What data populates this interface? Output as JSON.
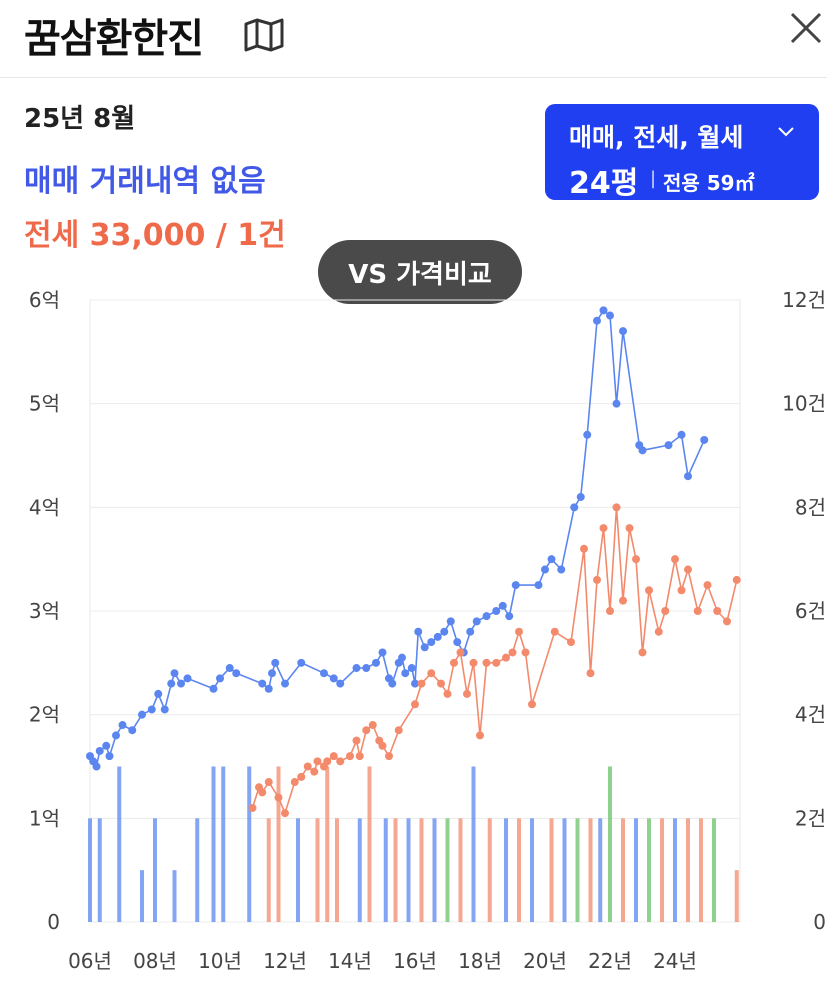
{
  "header": {
    "title": "꿈삼환한진",
    "map_icon": "map-icon",
    "close_icon": "close-icon"
  },
  "info": {
    "month": "25년 8월",
    "sale_text": "매매 거래내역 없음",
    "rent_text": "전세 33,000 / 1건"
  },
  "filter": {
    "types": "매매, 전세, 월세",
    "size": "24평",
    "area": "전용 59㎡"
  },
  "vs_button": "VS 가격비교",
  "colors": {
    "sale": "#5b86f0",
    "rent": "#f38a6c",
    "monthly": "#6cc16b",
    "accent": "#1f3ff0"
  },
  "chart_data": {
    "type": "line",
    "x_range": [
      2006,
      2026
    ],
    "xticks": [
      "06년",
      "08년",
      "10년",
      "12년",
      "14년",
      "16년",
      "18년",
      "20년",
      "22년",
      "24년"
    ],
    "y_left": {
      "ylim": [
        0,
        6
      ],
      "ticks": [
        "0",
        "1억",
        "2억",
        "3억",
        "4억",
        "5억",
        "6억"
      ]
    },
    "y_right": {
      "ylim": [
        0,
        12
      ],
      "ticks": [
        "0",
        "2건",
        "4건",
        "6건",
        "8건",
        "10건",
        "12건"
      ]
    },
    "series": [
      {
        "color": "#5b86f0",
        "points": [
          [
            2006.0,
            1.6
          ],
          [
            2006.1,
            1.55
          ],
          [
            2006.2,
            1.5
          ],
          [
            2006.3,
            1.65
          ],
          [
            2006.5,
            1.7
          ],
          [
            2006.6,
            1.6
          ],
          [
            2006.8,
            1.8
          ],
          [
            2007.0,
            1.9
          ],
          [
            2007.3,
            1.85
          ],
          [
            2007.6,
            2.0
          ],
          [
            2007.9,
            2.05
          ],
          [
            2008.1,
            2.2
          ],
          [
            2008.3,
            2.05
          ],
          [
            2008.5,
            2.3
          ],
          [
            2008.6,
            2.4
          ],
          [
            2008.8,
            2.3
          ],
          [
            2009.0,
            2.35
          ],
          [
            2009.8,
            2.25
          ],
          [
            2010.0,
            2.35
          ],
          [
            2010.3,
            2.45
          ],
          [
            2010.5,
            2.4
          ],
          [
            2011.3,
            2.3
          ],
          [
            2011.5,
            2.25
          ],
          [
            2011.6,
            2.4
          ],
          [
            2011.7,
            2.5
          ],
          [
            2012.0,
            2.3
          ],
          [
            2012.5,
            2.5
          ],
          [
            2013.2,
            2.4
          ],
          [
            2013.5,
            2.35
          ],
          [
            2013.7,
            2.3
          ],
          [
            2014.2,
            2.45
          ],
          [
            2014.5,
            2.45
          ],
          [
            2014.8,
            2.5
          ],
          [
            2015.0,
            2.6
          ],
          [
            2015.2,
            2.35
          ],
          [
            2015.3,
            2.3
          ],
          [
            2015.5,
            2.5
          ],
          [
            2015.6,
            2.55
          ],
          [
            2015.7,
            2.4
          ],
          [
            2015.9,
            2.45
          ],
          [
            2016.0,
            2.3
          ],
          [
            2016.1,
            2.8
          ],
          [
            2016.3,
            2.65
          ],
          [
            2016.5,
            2.7
          ],
          [
            2016.7,
            2.75
          ],
          [
            2016.9,
            2.8
          ],
          [
            2017.1,
            2.9
          ],
          [
            2017.3,
            2.7
          ],
          [
            2017.5,
            2.6
          ],
          [
            2017.7,
            2.8
          ],
          [
            2017.9,
            2.9
          ],
          [
            2018.2,
            2.95
          ],
          [
            2018.5,
            3.0
          ],
          [
            2018.7,
            3.05
          ],
          [
            2018.9,
            2.95
          ],
          [
            2019.1,
            3.25
          ],
          [
            2019.8,
            3.25
          ],
          [
            2020.0,
            3.4
          ],
          [
            2020.2,
            3.5
          ],
          [
            2020.5,
            3.4
          ],
          [
            2020.9,
            4.0
          ],
          [
            2021.1,
            4.1
          ],
          [
            2021.3,
            4.7
          ],
          [
            2021.6,
            5.8
          ],
          [
            2021.8,
            5.9
          ],
          [
            2022.0,
            5.85
          ],
          [
            2022.2,
            5.0
          ],
          [
            2022.4,
            5.7
          ],
          [
            2022.9,
            4.6
          ],
          [
            2023.0,
            4.55
          ],
          [
            2023.8,
            4.6
          ],
          [
            2024.2,
            4.7
          ],
          [
            2024.4,
            4.3
          ],
          [
            2024.9,
            4.65
          ]
        ]
      },
      {
        "color": "#f38a6c",
        "points": [
          [
            2011.0,
            1.1
          ],
          [
            2011.2,
            1.3
          ],
          [
            2011.3,
            1.25
          ],
          [
            2011.5,
            1.35
          ],
          [
            2011.8,
            1.2
          ],
          [
            2012.0,
            1.05
          ],
          [
            2012.3,
            1.35
          ],
          [
            2012.5,
            1.4
          ],
          [
            2012.7,
            1.5
          ],
          [
            2012.9,
            1.45
          ],
          [
            2013.0,
            1.55
          ],
          [
            2013.2,
            1.5
          ],
          [
            2013.3,
            1.55
          ],
          [
            2013.5,
            1.6
          ],
          [
            2013.7,
            1.55
          ],
          [
            2014.0,
            1.6
          ],
          [
            2014.2,
            1.75
          ],
          [
            2014.3,
            1.6
          ],
          [
            2014.5,
            1.85
          ],
          [
            2014.7,
            1.9
          ],
          [
            2014.9,
            1.75
          ],
          [
            2015.0,
            1.7
          ],
          [
            2015.2,
            1.6
          ],
          [
            2015.5,
            1.85
          ],
          [
            2016.0,
            2.1
          ],
          [
            2016.2,
            2.3
          ],
          [
            2016.5,
            2.4
          ],
          [
            2016.8,
            2.3
          ],
          [
            2017.0,
            2.2
          ],
          [
            2017.2,
            2.5
          ],
          [
            2017.4,
            2.6
          ],
          [
            2017.6,
            2.2
          ],
          [
            2017.8,
            2.5
          ],
          [
            2018.0,
            1.8
          ],
          [
            2018.2,
            2.5
          ],
          [
            2018.5,
            2.5
          ],
          [
            2018.8,
            2.55
          ],
          [
            2019.0,
            2.6
          ],
          [
            2019.2,
            2.8
          ],
          [
            2019.4,
            2.6
          ],
          [
            2019.6,
            2.1
          ],
          [
            2020.3,
            2.8
          ],
          [
            2020.8,
            2.7
          ],
          [
            2021.2,
            3.6
          ],
          [
            2021.4,
            2.4
          ],
          [
            2021.6,
            3.3
          ],
          [
            2021.8,
            3.8
          ],
          [
            2022.0,
            3.0
          ],
          [
            2022.2,
            4.0
          ],
          [
            2022.4,
            3.1
          ],
          [
            2022.6,
            3.8
          ],
          [
            2022.8,
            3.5
          ],
          [
            2023.0,
            2.6
          ],
          [
            2023.2,
            3.2
          ],
          [
            2023.5,
            2.8
          ],
          [
            2023.7,
            3.0
          ],
          [
            2024.0,
            3.5
          ],
          [
            2024.2,
            3.2
          ],
          [
            2024.4,
            3.4
          ],
          [
            2024.7,
            3.0
          ],
          [
            2025.0,
            3.25
          ],
          [
            2025.3,
            3.0
          ],
          [
            2025.6,
            2.9
          ],
          [
            2025.9,
            3.3
          ]
        ]
      }
    ],
    "bars": [
      {
        "x": 2006.0,
        "count": 2,
        "color": "#5b86f0"
      },
      {
        "x": 2006.3,
        "count": 2,
        "color": "#5b86f0"
      },
      {
        "x": 2006.9,
        "count": 3,
        "color": "#5b86f0"
      },
      {
        "x": 2007.6,
        "count": 1,
        "color": "#5b86f0"
      },
      {
        "x": 2008.0,
        "count": 2,
        "color": "#5b86f0"
      },
      {
        "x": 2008.6,
        "count": 1,
        "color": "#5b86f0"
      },
      {
        "x": 2009.3,
        "count": 2,
        "color": "#5b86f0"
      },
      {
        "x": 2009.8,
        "count": 3,
        "color": "#5b86f0"
      },
      {
        "x": 2010.1,
        "count": 3,
        "color": "#5b86f0"
      },
      {
        "x": 2010.9,
        "count": 3,
        "color": "#5b86f0"
      },
      {
        "x": 2011.5,
        "count": 2,
        "color": "#f38a6c"
      },
      {
        "x": 2011.8,
        "count": 3,
        "color": "#f38a6c"
      },
      {
        "x": 2012.4,
        "count": 2,
        "color": "#5b86f0"
      },
      {
        "x": 2013.0,
        "count": 2,
        "color": "#f38a6c"
      },
      {
        "x": 2013.3,
        "count": 3,
        "color": "#f38a6c"
      },
      {
        "x": 2013.6,
        "count": 2,
        "color": "#f38a6c"
      },
      {
        "x": 2014.3,
        "count": 2,
        "color": "#5b86f0"
      },
      {
        "x": 2014.6,
        "count": 3,
        "color": "#f38a6c"
      },
      {
        "x": 2015.1,
        "count": 2,
        "color": "#5b86f0"
      },
      {
        "x": 2015.4,
        "count": 2,
        "color": "#f38a6c"
      },
      {
        "x": 2015.8,
        "count": 2,
        "color": "#5b86f0"
      },
      {
        "x": 2016.2,
        "count": 2,
        "color": "#f38a6c"
      },
      {
        "x": 2016.6,
        "count": 2,
        "color": "#5b86f0"
      },
      {
        "x": 2017.0,
        "count": 2,
        "color": "#6cc16b"
      },
      {
        "x": 2017.4,
        "count": 2,
        "color": "#f38a6c"
      },
      {
        "x": 2017.8,
        "count": 3,
        "color": "#5b86f0"
      },
      {
        "x": 2018.3,
        "count": 2,
        "color": "#f38a6c"
      },
      {
        "x": 2018.8,
        "count": 2,
        "color": "#5b86f0"
      },
      {
        "x": 2019.2,
        "count": 2,
        "color": "#f38a6c"
      },
      {
        "x": 2019.6,
        "count": 2,
        "color": "#5b86f0"
      },
      {
        "x": 2020.2,
        "count": 2,
        "color": "#f38a6c"
      },
      {
        "x": 2020.6,
        "count": 2,
        "color": "#5b86f0"
      },
      {
        "x": 2021.0,
        "count": 2,
        "color": "#6cc16b"
      },
      {
        "x": 2021.4,
        "count": 2,
        "color": "#f38a6c"
      },
      {
        "x": 2021.7,
        "count": 2,
        "color": "#5b86f0"
      },
      {
        "x": 2022.0,
        "count": 3,
        "color": "#6cc16b"
      },
      {
        "x": 2022.4,
        "count": 2,
        "color": "#f38a6c"
      },
      {
        "x": 2022.8,
        "count": 2,
        "color": "#5b86f0"
      },
      {
        "x": 2023.2,
        "count": 2,
        "color": "#6cc16b"
      },
      {
        "x": 2023.6,
        "count": 2,
        "color": "#f38a6c"
      },
      {
        "x": 2024.0,
        "count": 2,
        "color": "#5b86f0"
      },
      {
        "x": 2024.4,
        "count": 2,
        "color": "#f38a6c"
      },
      {
        "x": 2024.8,
        "count": 2,
        "color": "#f38a6c"
      },
      {
        "x": 2025.2,
        "count": 2,
        "color": "#6cc16b"
      },
      {
        "x": 2025.9,
        "count": 1,
        "color": "#f38a6c"
      }
    ]
  }
}
